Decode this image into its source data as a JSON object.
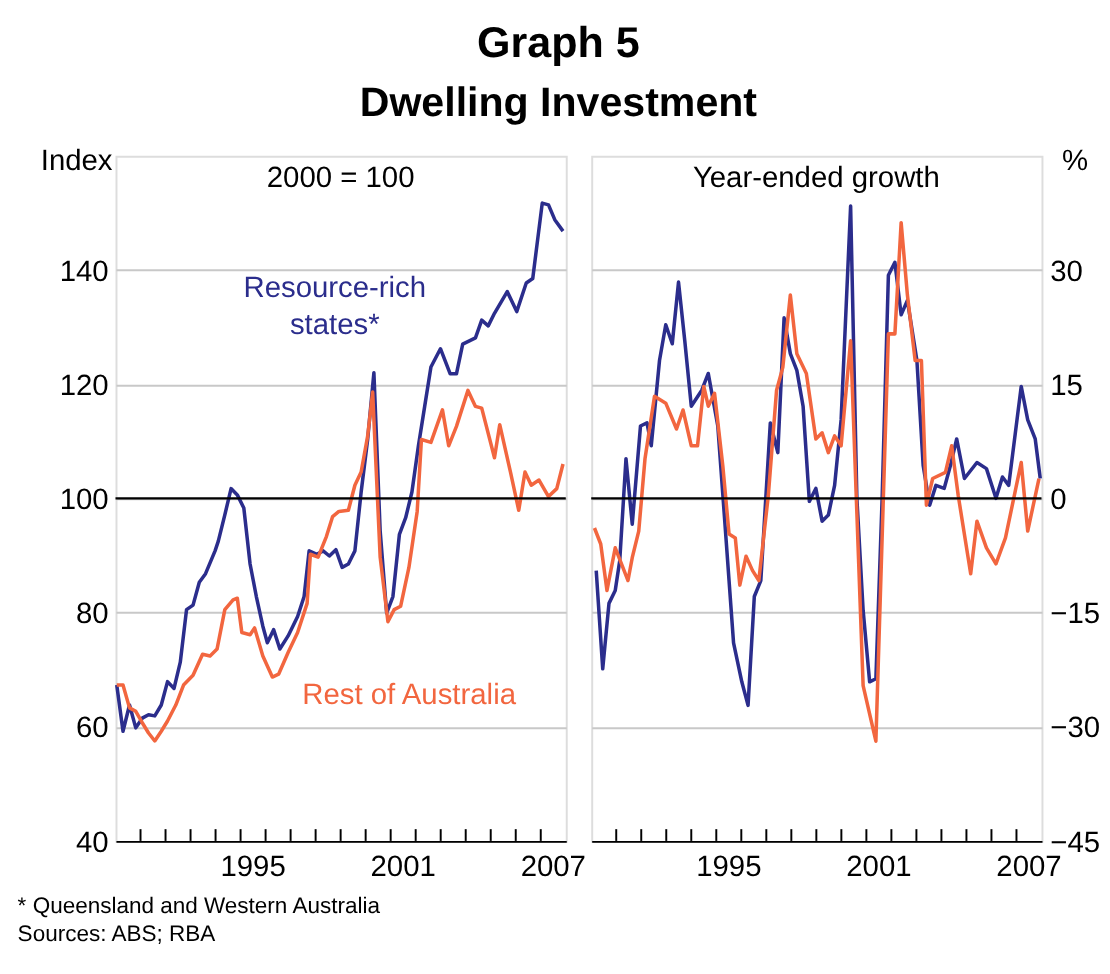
{
  "chart_data": [
    {
      "type": "line",
      "title": "Graph 5",
      "subtitle": "Dwelling Investment",
      "ylabel": "Index",
      "annotations": [
        "2000 = 100",
        "* Queensland and Western Australia",
        "Sources: ABS; RBA"
      ],
      "xlim": [
        1990,
        2008
      ],
      "xticks": [
        {
          "value": 1991,
          "label": null
        },
        {
          "value": 1992,
          "label": null
        },
        {
          "value": 1993,
          "label": null
        },
        {
          "value": 1994,
          "label": null
        },
        {
          "value": 1995,
          "label": null
        },
        {
          "value": 1995.5,
          "label": "1995"
        },
        {
          "value": 1996,
          "label": null
        },
        {
          "value": 1997,
          "label": null
        },
        {
          "value": 1998,
          "label": null
        },
        {
          "value": 1999,
          "label": null
        },
        {
          "value": 2000,
          "label": null
        },
        {
          "value": 2001,
          "label": null
        },
        {
          "value": 2001.5,
          "label": "2001"
        },
        {
          "value": 2002,
          "label": null
        },
        {
          "value": 2003,
          "label": null
        },
        {
          "value": 2004,
          "label": null
        },
        {
          "value": 2005,
          "label": null
        },
        {
          "value": 2006,
          "label": null
        },
        {
          "value": 2007,
          "label": null
        },
        {
          "value": 2007.5,
          "label": "2007"
        }
      ],
      "ylim": [
        40,
        160
      ],
      "yticks": [
        40,
        60,
        80,
        100,
        120,
        140
      ],
      "grid": "y",
      "legend": false,
      "line_style": "solid",
      "ref_lines": [
        {
          "axis": "y",
          "value": 100,
          "color": "#000000"
        }
      ],
      "series": [
        {
          "name": "Resource-rich states*",
          "color": "#2b2d8c",
          "x": [
            1990.05,
            1990.3,
            1990.56,
            1990.81,
            1991.07,
            1991.32,
            1991.57,
            1991.83,
            1992.08,
            1992.34,
            1992.59,
            1992.84,
            1993.1,
            1993.35,
            1993.6,
            1993.98,
            1994.11,
            1994.37,
            1994.62,
            1994.87,
            1995.13,
            1995.38,
            1995.63,
            1995.89,
            1996.07,
            1996.32,
            1996.57,
            1996.9,
            1997.28,
            1997.54,
            1997.74,
            1998.05,
            1998.3,
            1998.55,
            1998.81,
            1999.06,
            1999.31,
            1999.57,
            1999.82,
            2000.08,
            2000.33,
            2000.58,
            2000.84,
            2001.09,
            2001.35,
            2001.6,
            2001.85,
            2002.11,
            2002.36,
            2002.61,
            2002.99,
            2003.38,
            2003.63,
            2003.88,
            2004.39,
            2004.64,
            2004.9,
            2005.15,
            2005.66,
            2006.04,
            2006.42,
            2006.68,
            2007.06,
            2007.31,
            2007.56,
            2007.89
          ],
          "values": [
            67.3,
            59.2,
            63.8,
            59.8,
            61.5,
            62.1,
            61.9,
            63.8,
            67.9,
            66.7,
            71.3,
            80.5,
            81.3,
            85.3,
            86.8,
            90.8,
            92.5,
            97.1,
            101.7,
            100.6,
            98.3,
            88.5,
            82.8,
            77.6,
            74.7,
            77,
            73.6,
            75.9,
            79.3,
            82.8,
            90.8,
            90.2,
            90.8,
            89.9,
            91,
            87.9,
            88.5,
            90.8,
            101.1,
            110.3,
            122,
            94.3,
            79.9,
            82.8,
            93.7,
            96.6,
            101.1,
            109.2,
            116.1,
            123,
            126.2,
            121.8,
            121.8,
            127,
            128.1,
            131.2,
            130.2,
            132.4,
            136.2,
            132.7,
            137.7,
            138.5,
            151.7,
            151.4,
            148.8,
            146.8
          ]
        },
        {
          "name": "Rest of Australia",
          "color": "#f2663f",
          "x": [
            1990.05,
            1990.3,
            1990.56,
            1990.81,
            1991.07,
            1991.32,
            1991.57,
            1991.83,
            1992.08,
            1992.41,
            1992.72,
            1993.1,
            1993.48,
            1993.78,
            1994.06,
            1994.37,
            1994.7,
            1994.87,
            1995.05,
            1995.38,
            1995.56,
            1995.89,
            1996.27,
            1996.52,
            1996.9,
            1997.28,
            1997.66,
            1997.79,
            1998.1,
            1998.43,
            1998.68,
            1998.93,
            1999.31,
            1999.57,
            1999.82,
            2000.08,
            2000.28,
            2000.58,
            2000.89,
            2001.14,
            2001.4,
            2001.73,
            2002.06,
            2002.23,
            2002.61,
            2003.07,
            2003.32,
            2003.63,
            2004.09,
            2004.39,
            2004.64,
            2005.15,
            2005.36,
            2005.79,
            2006.12,
            2006.37,
            2006.62,
            2006.93,
            2007.31,
            2007.64,
            2007.89
          ],
          "values": [
            67.3,
            67.3,
            63.3,
            62.7,
            60.7,
            58.9,
            57.5,
            59.2,
            61,
            63.8,
            67.3,
            69,
            72.7,
            72.4,
            73.6,
            80.5,
            82.2,
            82.5,
            76.5,
            76.1,
            77.3,
            72.4,
            68.7,
            69.2,
            73,
            76.5,
            81.6,
            90.2,
            89.7,
            93.3,
            96.8,
            97.7,
            97.9,
            102.3,
            104.6,
            110.9,
            118.6,
            89.7,
            78.4,
            80.5,
            81.1,
            87.9,
            97.7,
            110.3,
            109.8,
            115.5,
            109.2,
            112.6,
            118.9,
            116.1,
            115.8,
            107.1,
            112.9,
            104.6,
            97.9,
            104.6,
            102.3,
            103.2,
            100.3,
            101.7,
            106
          ]
        }
      ]
    },
    {
      "type": "line",
      "ylabel": "%",
      "annotations": [
        "Year-ended growth"
      ],
      "xlim": [
        1990,
        2008
      ],
      "xticks": [
        {
          "value": 1991,
          "label": null
        },
        {
          "value": 1992,
          "label": null
        },
        {
          "value": 1993,
          "label": null
        },
        {
          "value": 1994,
          "label": null
        },
        {
          "value": 1995,
          "label": null
        },
        {
          "value": 1995.5,
          "label": "1995"
        },
        {
          "value": 1996,
          "label": null
        },
        {
          "value": 1997,
          "label": null
        },
        {
          "value": 1998,
          "label": null
        },
        {
          "value": 1999,
          "label": null
        },
        {
          "value": 2000,
          "label": null
        },
        {
          "value": 2001,
          "label": null
        },
        {
          "value": 2001.5,
          "label": "2001"
        },
        {
          "value": 2002,
          "label": null
        },
        {
          "value": 2003,
          "label": null
        },
        {
          "value": 2004,
          "label": null
        },
        {
          "value": 2005,
          "label": null
        },
        {
          "value": 2006,
          "label": null
        },
        {
          "value": 2007,
          "label": null
        },
        {
          "value": 2007.5,
          "label": "2007"
        }
      ],
      "ylim": [
        -45,
        45
      ],
      "yticks": [
        -45,
        -30,
        -15,
        0,
        15,
        30
      ],
      "grid": "y",
      "legend": false,
      "line_style": "solid",
      "ref_lines": [
        {
          "axis": "y",
          "value": 0,
          "color": "#000000"
        }
      ],
      "series": [
        {
          "color": "#2b2d8c",
          "x": [
            1990.2,
            1990.46,
            1990.71,
            1990.96,
            1991.14,
            1991.39,
            1991.64,
            1991.97,
            1992.23,
            1992.4,
            1992.73,
            1992.98,
            1993.24,
            1993.49,
            1993.74,
            1994.0,
            1994.42,
            1994.68,
            1995.06,
            1995.31,
            1995.69,
            1996.02,
            1996.27,
            1996.52,
            1996.78,
            1997.16,
            1997.46,
            1997.71,
            1997.96,
            1998.22,
            1998.47,
            1998.72,
            1998.98,
            1999.23,
            1999.48,
            1999.73,
            1999.99,
            2000.37,
            2000.62,
            2000.87,
            2001.13,
            2001.38,
            2001.63,
            2001.88,
            2002.14,
            2002.39,
            2002.64,
            2003.02,
            2003.27,
            2003.53,
            2003.78,
            2004.11,
            2004.36,
            2004.61,
            2004.92,
            2005.42,
            2005.8,
            2006.18,
            2006.44,
            2006.69,
            2007.19,
            2007.45,
            2007.75,
            2007.95
          ],
          "values": [
            -9.5,
            -22.4,
            -13.8,
            -12.1,
            -8.2,
            5.2,
            -3.4,
            9.5,
            9.9,
            6.9,
            18.1,
            22.8,
            20.3,
            28.4,
            20.7,
            12.1,
            14.2,
            16.4,
            9.5,
            -1.7,
            -19,
            -24.1,
            -27.2,
            -12.9,
            -10.8,
            9.9,
            6,
            23.7,
            19,
            16.8,
            12.1,
            -0.4,
            1.3,
            -3,
            -2.2,
            1.7,
            10.3,
            38.4,
            0,
            -14.7,
            -24.1,
            -23.7,
            0,
            29.3,
            31,
            24.1,
            26,
            18.1,
            4.3,
            -0.9,
            1.7,
            1.3,
            4.3,
            7.8,
            2.6,
            4.7,
            3.9,
            0,
            2.8,
            1.7,
            14.7,
            10.3,
            7.8,
            2.6
          ]
        },
        {
          "color": "#f2663f",
          "x": [
            1990.13,
            1990.38,
            1990.63,
            1990.96,
            1991.21,
            1991.47,
            1991.64,
            1991.9,
            1992.15,
            1992.53,
            1992.98,
            1993.41,
            1993.67,
            1994.0,
            1994.25,
            1994.5,
            1994.68,
            1994.93,
            1995.26,
            1995.51,
            1995.76,
            1995.94,
            1996.19,
            1996.45,
            1996.7,
            1997.08,
            1997.41,
            1997.66,
            1997.96,
            1998.22,
            1998.6,
            1998.98,
            1999.23,
            1999.48,
            1999.73,
            1999.99,
            2000.37,
            2000.87,
            2001.38,
            2001.88,
            2002.14,
            2002.39,
            2002.64,
            2002.95,
            2003.2,
            2003.4,
            2003.65,
            2004.16,
            2004.41,
            2004.67,
            2005.17,
            2005.42,
            2005.8,
            2006.18,
            2006.56,
            2007.19,
            2007.45,
            2007.9
          ],
          "values": [
            -3.9,
            -6,
            -12.1,
            -6.5,
            -8.6,
            -10.8,
            -7.8,
            -4.3,
            5.2,
            13.4,
            12.5,
            9.1,
            11.6,
            6.9,
            6.9,
            14.7,
            12.1,
            13.8,
            4.3,
            -4.7,
            -5.2,
            -11.4,
            -7.6,
            -9.5,
            -10.8,
            0.4,
            14.2,
            17.2,
            26.7,
            19,
            16.4,
            7.8,
            8.6,
            6,
            8.2,
            6.9,
            20.7,
            -24.6,
            -31.9,
            21.6,
            21.6,
            36.2,
            26.7,
            18.1,
            18.1,
            -0.9,
            2.6,
            3.4,
            6.9,
            0.4,
            -9.9,
            -3,
            -6.5,
            -8.6,
            -5.2,
            4.7,
            -4.3,
            2.6
          ]
        }
      ]
    }
  ]
}
